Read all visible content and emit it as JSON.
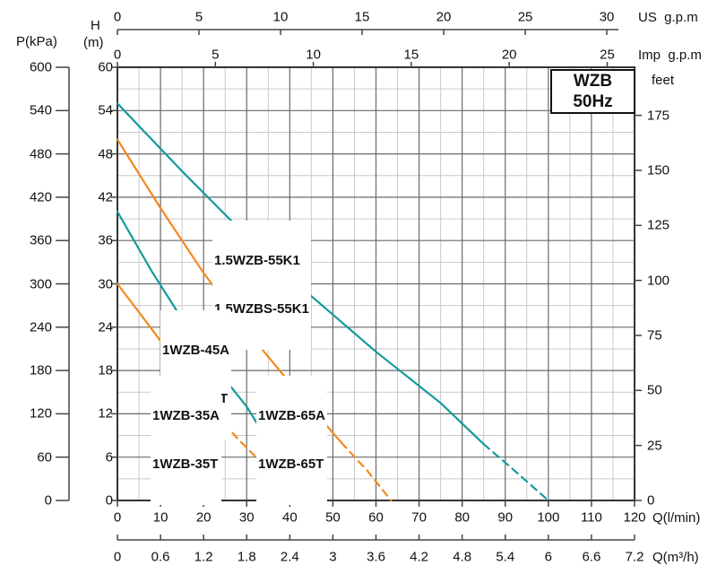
{
  "title_box": {
    "line1": "WZB",
    "line2": "50Hz"
  },
  "axes": {
    "us_gpm": {
      "label": "US  g.p.m",
      "ticks": [
        "0",
        "5",
        "10",
        "15",
        "20",
        "25",
        "30"
      ]
    },
    "imp_gpm": {
      "label": "Imp  g.p.m",
      "ticks": [
        "0",
        "5",
        "10",
        "15",
        "20",
        "25"
      ]
    },
    "p_kpa": {
      "label": "P(kPa)",
      "ticks": [
        "600",
        "540",
        "480",
        "420",
        "360",
        "300",
        "240",
        "180",
        "120",
        "60",
        "0"
      ]
    },
    "h_m": {
      "label_line1": "H",
      "label_line2": "(m)",
      "ticks": [
        "60",
        "54",
        "48",
        "42",
        "36",
        "30",
        "24",
        "18",
        "12",
        "6",
        "0"
      ]
    },
    "feet": {
      "label": "feet",
      "ticks": [
        "175",
        "150",
        "125",
        "100",
        "75",
        "50",
        "25",
        "0"
      ]
    },
    "q_lmin": {
      "label": "Q(l/min)",
      "ticks": [
        "0",
        "10",
        "20",
        "30",
        "40",
        "50",
        "60",
        "70",
        "80",
        "90",
        "100",
        "110",
        "120"
      ]
    },
    "q_m3h": {
      "label": "Q(m³/h)",
      "ticks": [
        "0",
        "0.6",
        "1.2",
        "1.8",
        "2.4",
        "3",
        "3.6",
        "4.2",
        "4.8",
        "5.4",
        "6",
        "6.6",
        "7.2"
      ]
    }
  },
  "colors": {
    "teal": "#149a9a",
    "orange": "#f28a1d",
    "grid_minor": "#c9c9c9",
    "grid_major": "#6a6a6a",
    "border": "#333333",
    "axis": "#444444",
    "text": "#111111"
  },
  "chart_data": {
    "type": "line",
    "title": "WZB 50Hz pump performance curves",
    "xlabel": "Q(l/min)",
    "ylabel": "H(m)",
    "xlim": [
      0,
      120
    ],
    "ylim": [
      0,
      60
    ],
    "x2label_us": "US g.p.m (0-30)",
    "x2label_imp": "Imp g.p.m (0-25)",
    "y2label_feet": "feet (0-175)",
    "grid": "on",
    "series": [
      {
        "name": "1.5WZB-55K1 / 1.5WZBS-55K1",
        "color": "#149a9a",
        "solid": [
          [
            0,
            55
          ],
          [
            15,
            45.6
          ],
          [
            30,
            36.6
          ],
          [
            45,
            28.3
          ],
          [
            60,
            20.6
          ],
          [
            75,
            13.5
          ],
          [
            85,
            7.8
          ]
        ],
        "dashed": [
          [
            85,
            7.8
          ],
          [
            92,
            4.2
          ],
          [
            100,
            0
          ]
        ]
      },
      {
        "name": "1WZB-45A / 1WZB-45T",
        "color": "#f28a1d",
        "solid": [
          [
            0,
            50
          ],
          [
            10,
            40.5
          ],
          [
            20,
            31.5
          ],
          [
            30,
            23.5
          ],
          [
            40,
            16.3
          ],
          [
            46,
            12.1
          ],
          [
            52,
            8
          ]
        ],
        "dashed": [
          [
            52,
            8
          ],
          [
            58,
            4.1
          ],
          [
            63.5,
            0
          ]
        ]
      },
      {
        "name": "1WZB-65A / 1WZB-65T",
        "color": "#149a9a",
        "solid": [
          [
            0,
            40
          ],
          [
            8,
            31.7
          ],
          [
            16,
            24.2
          ],
          [
            24,
            17.5
          ],
          [
            30,
            13
          ],
          [
            36,
            7.2
          ]
        ],
        "dashed": [
          [
            36,
            7.2
          ],
          [
            42,
            3.3
          ],
          [
            47.5,
            0
          ]
        ]
      },
      {
        "name": "1WZB-35A / 1WZB-35T",
        "color": "#f28a1d",
        "solid": [
          [
            0,
            30
          ],
          [
            7,
            24.5
          ],
          [
            14,
            18.9
          ],
          [
            21,
            13.3
          ]
        ],
        "dashed": [
          [
            21,
            13.3
          ],
          [
            28,
            8.5
          ],
          [
            35,
            4.3
          ],
          [
            42.5,
            0
          ]
        ]
      }
    ],
    "labels": [
      {
        "line1": "1.5WZB-55K1",
        "line2": "1.5WZBS-55K1"
      },
      {
        "line1": "1WZB-45A",
        "line2": "1WZB-45T"
      },
      {
        "line1": "1WZB-35A",
        "line2": "1WZB-35T"
      },
      {
        "line1": "1WZB-65A",
        "line2": "1WZB-65T"
      }
    ]
  }
}
